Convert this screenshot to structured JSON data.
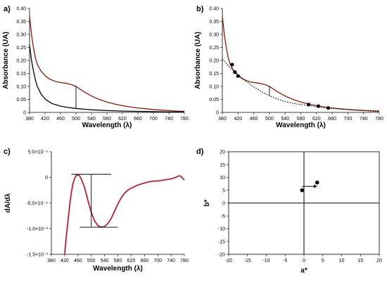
{
  "chart_data": [
    {
      "id": "a",
      "panel_label": "a)",
      "type": "line",
      "xlabel": "Wavelength (λ)",
      "ylabel": "Absorbance (UA)",
      "xlim": [
        380,
        780
      ],
      "ylim": [
        0,
        0.4
      ],
      "x_ticks": [
        "380",
        "420",
        "460",
        "500",
        "540",
        "580",
        "620",
        "660",
        "700",
        "740",
        "780"
      ],
      "y_ticks": [
        "0",
        "0.05",
        "0.10",
        "0.15",
        "0.20",
        "0.25",
        "0.30",
        "0.35",
        "0.40"
      ],
      "colors": {
        "brown": "#8b1a0e",
        "black": "#000000"
      },
      "series": [
        {
          "color": "brown",
          "points": [
            [
              380,
              0.37
            ],
            [
              385,
              0.3
            ],
            [
              390,
              0.25
            ],
            [
              395,
              0.21
            ],
            [
              400,
              0.185
            ],
            [
              410,
              0.158
            ],
            [
              420,
              0.142
            ],
            [
              430,
              0.13
            ],
            [
              440,
              0.123
            ],
            [
              450,
              0.118
            ],
            [
              460,
              0.115
            ],
            [
              470,
              0.113
            ],
            [
              480,
              0.11
            ],
            [
              490,
              0.106
            ],
            [
              500,
              0.1
            ],
            [
              510,
              0.09
            ],
            [
              520,
              0.08
            ],
            [
              540,
              0.063
            ],
            [
              560,
              0.05
            ],
            [
              580,
              0.04
            ],
            [
              600,
              0.032
            ],
            [
              620,
              0.026
            ],
            [
              640,
              0.021
            ],
            [
              660,
              0.017
            ],
            [
              680,
              0.014
            ],
            [
              700,
              0.011
            ],
            [
              720,
              0.009
            ],
            [
              740,
              0.007
            ],
            [
              760,
              0.005
            ],
            [
              780,
              0.004
            ]
          ]
        },
        {
          "color": "black",
          "points": [
            [
              380,
              0.26
            ],
            [
              385,
              0.2
            ],
            [
              390,
              0.16
            ],
            [
              395,
              0.125
            ],
            [
              400,
              0.1
            ],
            [
              410,
              0.07
            ],
            [
              420,
              0.052
            ],
            [
              430,
              0.041
            ],
            [
              440,
              0.033
            ],
            [
              460,
              0.024
            ],
            [
              480,
              0.019
            ],
            [
              500,
              0.015
            ],
            [
              540,
              0.01
            ],
            [
              580,
              0.007
            ],
            [
              620,
              0.005
            ],
            [
              660,
              0.004
            ],
            [
              700,
              0.003
            ],
            [
              740,
              0.002
            ],
            [
              780,
              0.002
            ]
          ]
        }
      ],
      "annotations": [
        {
          "type": "vline",
          "x": 500,
          "y1": 0.015,
          "y2": 0.1
        }
      ]
    },
    {
      "id": "b",
      "panel_label": "b)",
      "type": "line",
      "xlabel": "Wavelength (λ)",
      "ylabel": "Absorbance (UA)",
      "xlim": [
        380,
        780
      ],
      "ylim": [
        0,
        0.4
      ],
      "x_ticks": [
        "380",
        "420",
        "460",
        "500",
        "540",
        "580",
        "620",
        "660",
        "700",
        "740",
        "780"
      ],
      "y_ticks": [
        "0",
        "0.05",
        "0.10",
        "0.15",
        "0.20",
        "0.25",
        "0.30",
        "0.35",
        "0.40"
      ],
      "colors": {
        "brown": "#8b1a0e",
        "black": "#000000"
      },
      "series": [
        {
          "color": "brown",
          "points": [
            [
              380,
              0.37
            ],
            [
              385,
              0.3
            ],
            [
              390,
              0.25
            ],
            [
              395,
              0.21
            ],
            [
              400,
              0.185
            ],
            [
              410,
              0.158
            ],
            [
              420,
              0.142
            ],
            [
              430,
              0.13
            ],
            [
              440,
              0.123
            ],
            [
              450,
              0.118
            ],
            [
              460,
              0.115
            ],
            [
              470,
              0.113
            ],
            [
              480,
              0.11
            ],
            [
              490,
              0.106
            ],
            [
              500,
              0.1
            ],
            [
              510,
              0.09
            ],
            [
              520,
              0.08
            ],
            [
              540,
              0.063
            ],
            [
              560,
              0.05
            ],
            [
              580,
              0.04
            ],
            [
              600,
              0.032
            ],
            [
              620,
              0.026
            ],
            [
              640,
              0.021
            ],
            [
              660,
              0.017
            ],
            [
              680,
              0.014
            ],
            [
              700,
              0.011
            ],
            [
              720,
              0.009
            ],
            [
              740,
              0.007
            ],
            [
              760,
              0.005
            ],
            [
              780,
              0.004
            ]
          ]
        },
        {
          "color": "black",
          "dashed": true,
          "points": [
            [
              380,
              0.205
            ],
            [
              400,
              0.172
            ],
            [
              420,
              0.145
            ],
            [
              440,
              0.12
            ],
            [
              460,
              0.098
            ],
            [
              480,
              0.08
            ],
            [
              500,
              0.064
            ],
            [
              520,
              0.052
            ],
            [
              540,
              0.042
            ],
            [
              560,
              0.035
            ],
            [
              580,
              0.03
            ],
            [
              600,
              0.026
            ],
            [
              620,
              0.022
            ],
            [
              640,
              0.018
            ],
            [
              660,
              0.015
            ],
            [
              700,
              0.011
            ],
            [
              740,
              0.008
            ],
            [
              780,
              0.006
            ]
          ]
        }
      ],
      "markers": [
        [
          405,
          0.184
        ],
        [
          412,
          0.155
        ],
        [
          420,
          0.14
        ],
        [
          600,
          0.03
        ],
        [
          625,
          0.024
        ],
        [
          650,
          0.017
        ]
      ],
      "annotations": [
        {
          "type": "vline",
          "x": 500,
          "y1": 0.064,
          "y2": 0.1
        }
      ]
    },
    {
      "id": "c",
      "panel_label": "c)",
      "type": "line",
      "xlabel": "Wavelength (λ)",
      "ylabel": "dA/dλ",
      "xlim": [
        380,
        780
      ],
      "ylim": [
        -0.0015,
        0.0005
      ],
      "x_ticks": [
        "380",
        "420",
        "460",
        "500",
        "540",
        "580",
        "620",
        "660",
        "700",
        "740",
        "780"
      ],
      "y_ticks": [
        "-1.5×10⁻³",
        "-1.0×10⁻³",
        "-5.0×10⁻⁴",
        "0",
        "5.0×10⁻⁴"
      ],
      "colors": {
        "brown": "#8b1a0e",
        "pink": "#f2a6cc",
        "black": "#000000"
      },
      "series": [
        {
          "color": "brown",
          "glow": "pink",
          "points": [
            [
              420,
              -0.0015
            ],
            [
              425,
              -0.00115
            ],
            [
              430,
              -0.00085
            ],
            [
              435,
              -0.00055
            ],
            [
              440,
              -0.0003
            ],
            [
              445,
              -0.00012
            ],
            [
              450,
              -2e-05
            ],
            [
              455,
              4e-05
            ],
            [
              460,
              5e-05
            ],
            [
              465,
              3e-05
            ],
            [
              470,
              -3e-05
            ],
            [
              480,
              -0.0002
            ],
            [
              490,
              -0.00045
            ],
            [
              500,
              -0.00068
            ],
            [
              510,
              -0.00085
            ],
            [
              520,
              -0.00094
            ],
            [
              530,
              -0.00097
            ],
            [
              540,
              -0.00096
            ],
            [
              550,
              -0.0009
            ],
            [
              560,
              -0.0008
            ],
            [
              570,
              -0.00066
            ],
            [
              580,
              -0.00052
            ],
            [
              590,
              -0.0004
            ],
            [
              600,
              -0.00031
            ],
            [
              610,
              -0.00025
            ],
            [
              620,
              -0.00021
            ],
            [
              630,
              -0.00018
            ],
            [
              640,
              -0.00015
            ],
            [
              650,
              -0.00013
            ],
            [
              660,
              -0.00011
            ],
            [
              670,
              -9e-05
            ],
            [
              680,
              -8e-05
            ],
            [
              690,
              -7e-05
            ],
            [
              700,
              -7e-05
            ],
            [
              710,
              -6e-05
            ],
            [
              720,
              -5e-05
            ],
            [
              730,
              -4e-05
            ],
            [
              740,
              -3e-05
            ],
            [
              750,
              -1e-05
            ],
            [
              760,
              2e-05
            ],
            [
              765,
              3e-05
            ],
            [
              770,
              2e-05
            ],
            [
              775,
              -2e-05
            ],
            [
              780,
              -5e-05
            ]
          ]
        }
      ],
      "annotations": [
        {
          "type": "hline",
          "y": 6e-05,
          "x1": 440,
          "x2": 560
        },
        {
          "type": "hline",
          "y": -0.00097,
          "x1": 465,
          "x2": 580
        },
        {
          "type": "vline",
          "x": 500,
          "y1": -0.00097,
          "y2": 6e-05
        }
      ]
    },
    {
      "id": "d",
      "panel_label": "d)",
      "type": "scatter",
      "xlabel": "a*",
      "ylabel": "b*",
      "xlim": [
        -20,
        20
      ],
      "ylim": [
        -20,
        20
      ],
      "x_ticks": [
        "-20",
        "-15",
        "-10",
        "-5",
        "0",
        "5",
        "10",
        "15",
        "20"
      ],
      "y_ticks": [
        "-20",
        "-15",
        "-10",
        "-5",
        "0",
        "5",
        "10",
        "15",
        "20"
      ],
      "colors": {
        "black": "#000000"
      },
      "points": [
        [
          -0.5,
          5
        ],
        [
          3.5,
          8
        ]
      ],
      "annotations": [
        {
          "type": "arrow",
          "x1": -0.5,
          "y1": 6.5,
          "x2": 2.8,
          "y2": 6.5
        }
      ]
    }
  ]
}
